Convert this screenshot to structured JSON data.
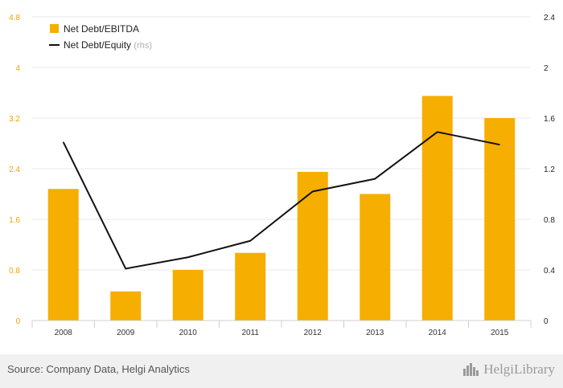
{
  "chart_data": {
    "type": "bar+line",
    "categories": [
      "2008",
      "2009",
      "2010",
      "2011",
      "2012",
      "2013",
      "2014",
      "2015"
    ],
    "series": [
      {
        "name": "Net Debt/EBITDA",
        "type": "bar",
        "axis": "left",
        "values": [
          2.08,
          0.46,
          0.8,
          1.07,
          2.35,
          2.0,
          3.55,
          3.2
        ]
      },
      {
        "name": "Net Debt/Equity",
        "name_suffix": "(rhs)",
        "type": "line",
        "axis": "right",
        "values": [
          1.41,
          0.41,
          0.5,
          0.63,
          1.02,
          1.12,
          1.49,
          1.39
        ]
      }
    ],
    "y_left": {
      "ylim": [
        0,
        4.8
      ],
      "ticks": [
        "0",
        "0.8",
        "1.6",
        "2.4",
        "3.2",
        "4",
        "4.8"
      ]
    },
    "y_right": {
      "ylim": [
        0,
        2.4
      ],
      "ticks": [
        "0",
        "0.4",
        "0.8",
        "1.2",
        "1.6",
        "2",
        "2.4"
      ]
    },
    "grid": true,
    "legend_position": "top-left",
    "colors": {
      "bar": "#f6ae00",
      "line": "#111111",
      "left_axis_text": "#f0a500",
      "grid": "#e9e9e9"
    }
  },
  "footer": {
    "source": "Source: Company Data, Helgi Analytics",
    "logo_text": "HelgiLibrary",
    "logo_icon": "skyline-icon"
  }
}
